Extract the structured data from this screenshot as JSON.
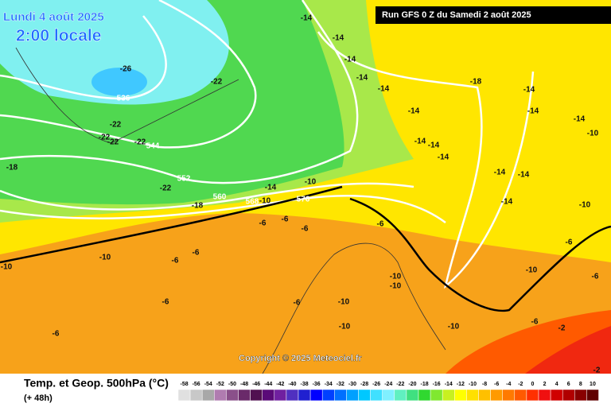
{
  "header": {
    "date": "Lundi 4 août 2025",
    "time": "2:00 locale",
    "run": "Run GFS 0 Z du Samedi 2 août 2025"
  },
  "copyright": "Copyright © 2025 Meteociel.fr",
  "footer": {
    "title": "Temp. et Geop. 500hPa (°C)",
    "lead": "(+ 48h)"
  },
  "contour_labels": [
    -26,
    536,
    -22,
    -22,
    -22,
    -22,
    -22,
    544,
    -18,
    552,
    -22,
    560,
    -18,
    568,
    -10,
    576,
    -14,
    -10,
    -14,
    -14,
    -14,
    -14,
    -14,
    -18,
    -14,
    -14,
    -14,
    -14,
    -14,
    -14,
    -14,
    -14,
    -14,
    -14,
    -10,
    -10,
    -6,
    -6,
    -6,
    -6,
    -6,
    -6,
    -6,
    -6,
    -6,
    -10,
    -10,
    -10,
    -10,
    -10,
    -10,
    -10,
    -10,
    -6,
    -2,
    -2,
    -6,
    -6
  ],
  "scale": [
    {
      "value": -58,
      "color": "#e0e0e0"
    },
    {
      "value": -56,
      "color": "#c8c8c8"
    },
    {
      "value": -54,
      "color": "#a8a8a8"
    },
    {
      "value": -52,
      "color": "#b07cb0"
    },
    {
      "value": -50,
      "color": "#8a508a"
    },
    {
      "value": -48,
      "color": "#6a2a6a"
    },
    {
      "value": -46,
      "color": "#501050"
    },
    {
      "value": -44,
      "color": "#5a0a78"
    },
    {
      "value": -42,
      "color": "#7020a0"
    },
    {
      "value": -40,
      "color": "#5030c0"
    },
    {
      "value": -38,
      "color": "#2020d0"
    },
    {
      "value": -36,
      "color": "#0000ff"
    },
    {
      "value": -34,
      "color": "#0040ff"
    },
    {
      "value": -32,
      "color": "#0070ff"
    },
    {
      "value": -30,
      "color": "#00a0ff"
    },
    {
      "value": -28,
      "color": "#00c8ff"
    },
    {
      "value": -26,
      "color": "#40e0ff"
    },
    {
      "value": -24,
      "color": "#80f0ff"
    },
    {
      "value": -22,
      "color": "#60f0c0"
    },
    {
      "value": -20,
      "color": "#40e080"
    },
    {
      "value": -18,
      "color": "#30d830"
    },
    {
      "value": -16,
      "color": "#80e830"
    },
    {
      "value": -14,
      "color": "#c8f020"
    },
    {
      "value": -12,
      "color": "#ffff00"
    },
    {
      "value": -10,
      "color": "#ffe000"
    },
    {
      "value": -8,
      "color": "#ffc000"
    },
    {
      "value": -6,
      "color": "#ff9a00"
    },
    {
      "value": -4,
      "color": "#ff7a00"
    },
    {
      "value": -2,
      "color": "#ff5a00"
    },
    {
      "value": 0,
      "color": "#ff3000"
    },
    {
      "value": 2,
      "color": "#f01010"
    },
    {
      "value": 4,
      "color": "#d00000"
    },
    {
      "value": 6,
      "color": "#b00000"
    },
    {
      "value": 8,
      "color": "#880000"
    },
    {
      "value": 10,
      "color": "#600000"
    }
  ]
}
